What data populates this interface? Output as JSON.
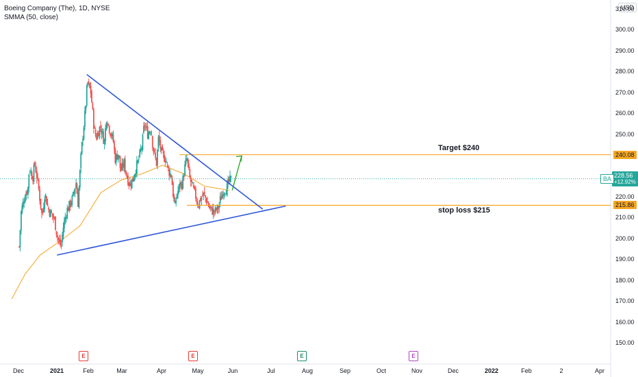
{
  "header": {
    "title": "Boeing Company (The), 1D, NYSE",
    "indicator": "SMMA (50, close)",
    "currency": "USD"
  },
  "colors": {
    "up": "#26a69a",
    "down": "#ef5350",
    "trendline": "#2f57d8",
    "level": "#f5a623",
    "smma": "#f5b041",
    "arrow": "#1aa31a"
  },
  "price_tag": {
    "symbol": "BA",
    "price": "228.56",
    "change": "+12.92%"
  },
  "level_tags": [
    "240.08",
    "215.86"
  ],
  "annotations": {
    "target": "Target $240",
    "stop": "stop loss $215"
  },
  "events": [
    {
      "letter": "E",
      "color": "#e53935"
    },
    {
      "letter": "E",
      "color": "#e53935"
    },
    {
      "letter": "E",
      "color": "#1b8a6b"
    },
    {
      "letter": "E",
      "color": "#ab47bc"
    }
  ],
  "chart_data": {
    "type": "candlestick",
    "title": "Boeing Company (The), 1D, NYSE",
    "ylim": [
      145,
      318
    ],
    "y_ticks": [
      150,
      160,
      170,
      180,
      190,
      200,
      210,
      220,
      230,
      240,
      250,
      260,
      270,
      280,
      290,
      300,
      310
    ],
    "y_tick_labels": [
      "150.00",
      "160.00",
      "170.00",
      "180.00",
      "190.00",
      "200.00",
      "210.00",
      "220.00",
      "230.00",
      "240.00",
      "250.00",
      "260.00",
      "270.00",
      "280.00",
      "290.00",
      "300.00",
      "310.00"
    ],
    "x_ticks": [
      "Dec",
      "2021",
      "Feb",
      "Mar",
      "Apr",
      "May",
      "Jun",
      "Jul",
      "Aug",
      "Sep",
      "Oct",
      "Nov",
      "Dec",
      "2022",
      "Feb",
      "2",
      "Apr"
    ],
    "close_path": [
      [
        "2020-12-01",
        196
      ],
      [
        "2020-12-04",
        213
      ],
      [
        "2020-12-09",
        220
      ],
      [
        "2020-12-14",
        224
      ],
      [
        "2020-12-16",
        234
      ],
      [
        "2020-12-21",
        229
      ],
      [
        "2020-12-24",
        236
      ],
      [
        "2020-12-29",
        226
      ],
      [
        "2021-01-04",
        210
      ],
      [
        "2021-01-08",
        222
      ],
      [
        "2021-01-13",
        214
      ],
      [
        "2021-01-19",
        211
      ],
      [
        "2021-01-22",
        209
      ],
      [
        "2021-01-27",
        200
      ],
      [
        "2021-02-01",
        196
      ],
      [
        "2021-02-04",
        205
      ],
      [
        "2021-02-09",
        213
      ],
      [
        "2021-02-12",
        215
      ],
      [
        "2021-02-18",
        219
      ],
      [
        "2021-02-23",
        227
      ],
      [
        "2021-02-26",
        217
      ],
      [
        "2021-03-03",
        242
      ],
      [
        "2021-03-09",
        262
      ],
      [
        "2021-03-12",
        275
      ],
      [
        "2021-03-17",
        270
      ],
      [
        "2021-03-22",
        252
      ],
      [
        "2021-03-25",
        248
      ],
      [
        "2021-03-31",
        254
      ],
      [
        "2021-04-06",
        246
      ],
      [
        "2021-04-09",
        258
      ],
      [
        "2021-04-14",
        252
      ],
      [
        "2021-04-19",
        247
      ],
      [
        "2021-04-22",
        238
      ],
      [
        "2021-04-27",
        241
      ],
      [
        "2021-04-30",
        232
      ],
      [
        "2021-05-05",
        236
      ],
      [
        "2021-05-10",
        229
      ],
      [
        "2021-05-13",
        226
      ],
      [
        "2021-05-18",
        228
      ],
      [
        "2021-05-21",
        232
      ],
      [
        "2021-05-26",
        237
      ],
      [
        "2021-06-01",
        245
      ],
      [
        "2021-06-04",
        255
      ],
      [
        "2021-06-09",
        250
      ],
      [
        "2021-06-14",
        253
      ],
      [
        "2021-06-17",
        243
      ],
      [
        "2021-06-22",
        236
      ],
      [
        "2021-06-25",
        248
      ],
      [
        "2021-06-30",
        240
      ],
      [
        "2021-07-06",
        238
      ],
      [
        "2021-07-09",
        233
      ],
      [
        "2021-07-14",
        230
      ],
      [
        "2021-07-19",
        214
      ],
      [
        "2021-07-22",
        221
      ],
      [
        "2021-07-27",
        226
      ],
      [
        "2021-07-30",
        226
      ],
      [
        "2021-08-04",
        236
      ],
      [
        "2021-08-06",
        238
      ],
      [
        "2021-08-10",
        229
      ],
      [
        "2021-08-13",
        226
      ],
      [
        "2021-08-18",
        221
      ],
      [
        "2021-08-23",
        216
      ],
      [
        "2021-08-26",
        219
      ],
      [
        "2021-08-31",
        221
      ],
      [
        "2021-09-03",
        219
      ],
      [
        "2021-09-09",
        214
      ],
      [
        "2021-09-14",
        213
      ],
      [
        "2021-09-17",
        213
      ],
      [
        "2021-09-22",
        215
      ],
      [
        "2021-09-24",
        218
      ],
      [
        "2021-09-29",
        223
      ],
      [
        "2021-10-04",
        224
      ],
      [
        "2021-10-07",
        227
      ],
      [
        "2021-10-11",
        228.56
      ]
    ],
    "smma_50": [
      [
        "2020-11-20",
        171
      ],
      [
        "2020-12-10",
        183
      ],
      [
        "2021-01-01",
        192
      ],
      [
        "2021-02-01",
        199
      ],
      [
        "2021-03-01",
        206
      ],
      [
        "2021-04-01",
        222
      ],
      [
        "2021-05-01",
        228
      ],
      [
        "2021-06-01",
        231
      ],
      [
        "2021-07-01",
        235
      ],
      [
        "2021-08-01",
        231
      ],
      [
        "2021-09-01",
        225
      ],
      [
        "2021-10-08",
        223
      ]
    ],
    "trendlines": [
      {
        "name": "upper",
        "start": [
          "2021-03-11",
          278.5
        ],
        "end": [
          "2021-11-26",
          214
        ]
      },
      {
        "name": "lower",
        "start": [
          "2021-01-26",
          192
        ],
        "end": [
          "2021-12-30",
          215.5
        ]
      }
    ],
    "levels": [
      {
        "start": "2021-07-26",
        "value": 240.08,
        "label": "Target $240"
      },
      {
        "start": "2021-08-06",
        "value": 215.86,
        "label": "stop loss $215"
      }
    ],
    "projection_arrow": {
      "start": [
        "2021-10-12",
        223
      ],
      "end": [
        "2021-10-26",
        239.5
      ]
    },
    "last_price": 228.56,
    "change_pct": "+12.92%",
    "grid": false
  }
}
